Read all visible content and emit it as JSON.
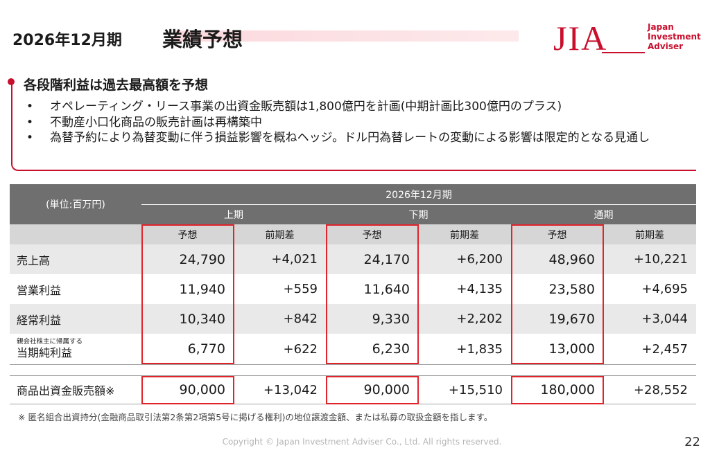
{
  "header": {
    "period": "2026年12月期",
    "title": "業績予想",
    "logo_mark": "JIA",
    "logo_text": [
      "Japan",
      "Investment",
      "Adviser"
    ],
    "brand_color": "#c8102e"
  },
  "summary": {
    "heading": "各段階利益は過去最高額を予想",
    "bullet_marker": "•",
    "bullets": [
      "オペレーティング・リース事業の出資金販売額は1,800億円を計画(中期計画比300億円のプラス)",
      "不動産小口化商品の販売計画は再構築中",
      "為替予約により為替変動に伴う損益影響を概ねヘッジ。ドル円為替レートの変動による影響は限定的となる見通し"
    ]
  },
  "table": {
    "unit": "(単位:百万円)",
    "period_header": "2026年12月期",
    "halves": [
      "上期",
      "下期",
      "通期"
    ],
    "col_labels": [
      "予想",
      "前期差",
      "予想",
      "前期差",
      "予想",
      "前期差"
    ],
    "rows": [
      {
        "label": "売上高",
        "values": [
          "24,790",
          "+4,021",
          "24,170",
          "+6,200",
          "48,960",
          "+10,221"
        ]
      },
      {
        "label": "営業利益",
        "values": [
          "11,940",
          "+559",
          "11,640",
          "+4,135",
          "23,580",
          "+4,695"
        ]
      },
      {
        "label": "経常利益",
        "values": [
          "10,340",
          "+842",
          "9,330",
          "+2,202",
          "19,670",
          "+3,044"
        ]
      },
      {
        "label_small": "親会社株主に帰属する",
        "label": "当期純利益",
        "values": [
          "6,770",
          "+622",
          "6,230",
          "+1,835",
          "13,000",
          "+2,457"
        ]
      }
    ],
    "extra_row": {
      "label": "商品出資金販売額※",
      "values": [
        "90,000",
        "+13,042",
        "90,000",
        "+15,510",
        "180,000",
        "+28,552"
      ]
    },
    "highlight_color": "#e0242c"
  },
  "footnote": "※  匿名組合出資持分(金融商品取引法第2条第2項第5号に掲げる権利)の地位譲渡金額、または私募の取扱金額を指します。",
  "copyright": "Copyright © Japan Investment Adviser Co., Ltd. All rights reserved.",
  "page_number": "22"
}
